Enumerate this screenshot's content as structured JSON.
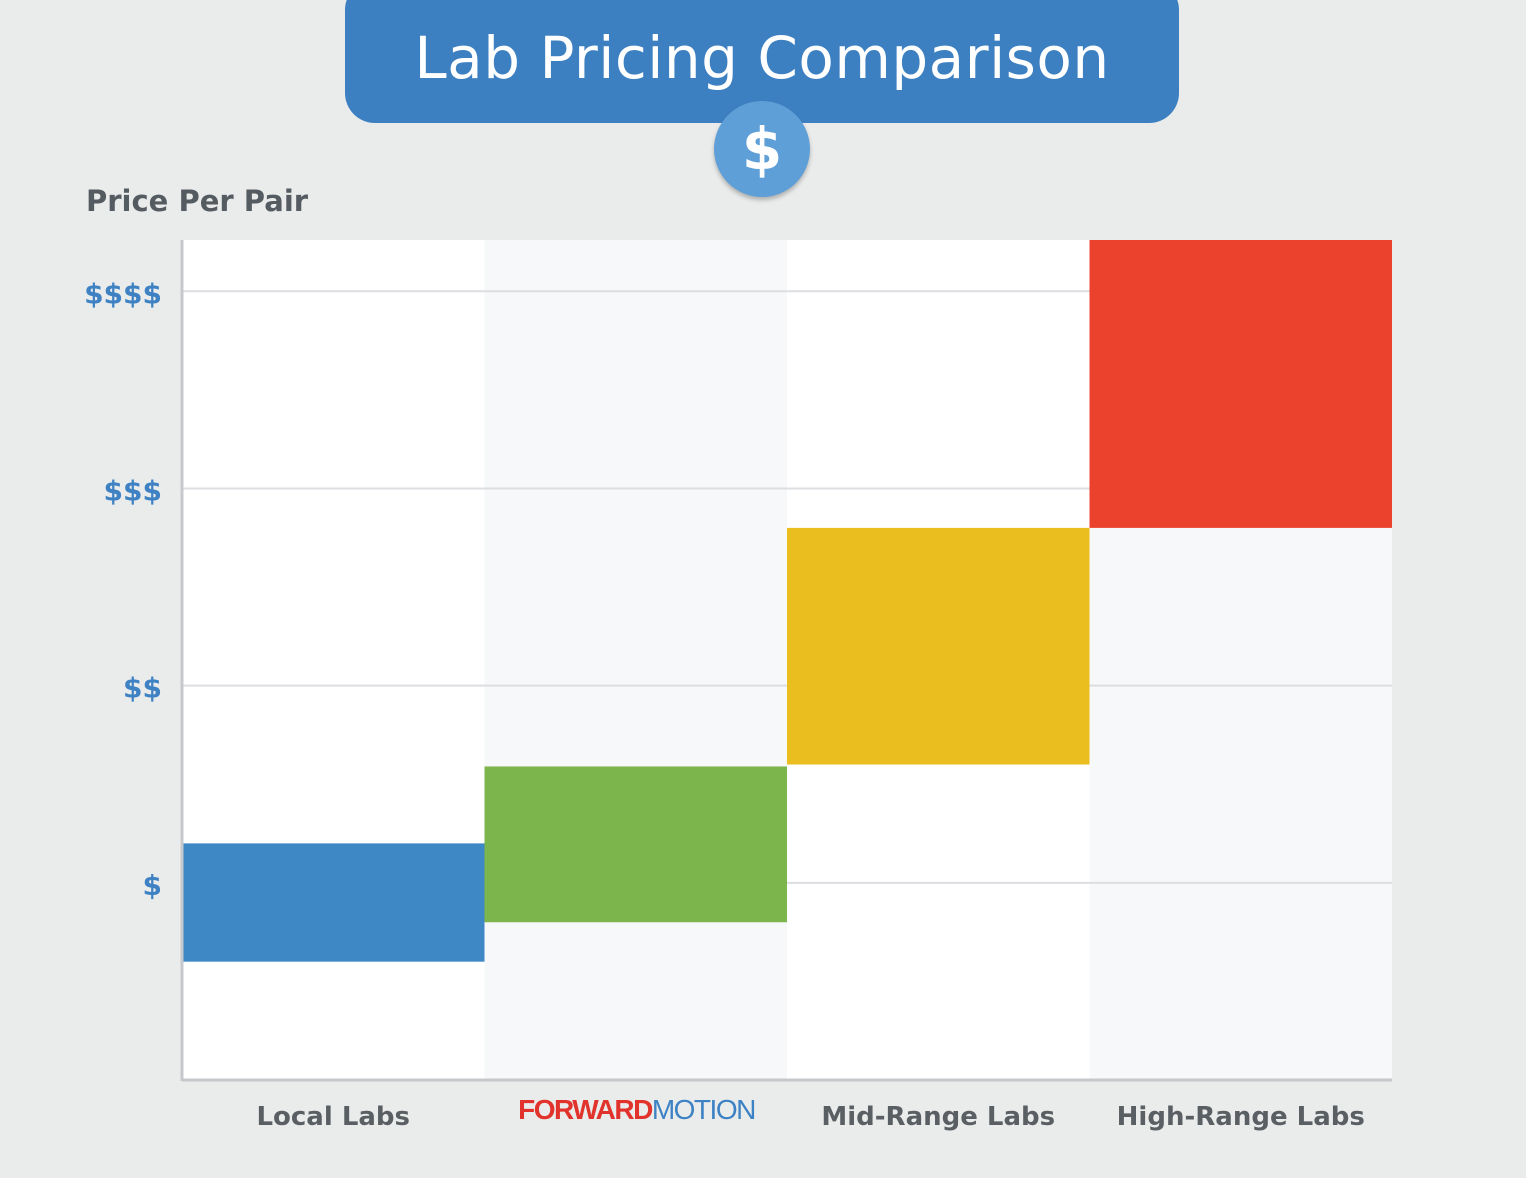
{
  "title": "Lab Pricing Comparison",
  "badge_icon": "dollar-sign-icon",
  "badge_text": "$",
  "brand": {
    "part1": "FORWARD",
    "part2": "MOTION",
    "part1_color": "#e1332b",
    "part2_color": "#3c82c4"
  },
  "chart_data": {
    "type": "bar",
    "subtype": "floating-range",
    "ylabel": "Price Per Pair",
    "ylim": [
      0.0,
      4.26
    ],
    "y_ticks": [
      {
        "value": 1,
        "label": "$"
      },
      {
        "value": 2,
        "label": "$$"
      },
      {
        "value": 3,
        "label": "$$$"
      },
      {
        "value": 4,
        "label": "$$$$"
      }
    ],
    "categories": [
      "Local Labs",
      "FORWARDMOTION",
      "Mid-Range Labs",
      "High-Range Labs"
    ],
    "ranges": [
      {
        "low": 0.6,
        "high": 1.2
      },
      {
        "low": 0.8,
        "high": 1.59
      },
      {
        "low": 1.6,
        "high": 2.8
      },
      {
        "low": 2.8,
        "high": 4.26
      }
    ],
    "colors": [
      "#3b86c5",
      "#79b447",
      "#ebbd1c",
      "#ea3e28"
    ],
    "grid": true,
    "legend": "none"
  }
}
